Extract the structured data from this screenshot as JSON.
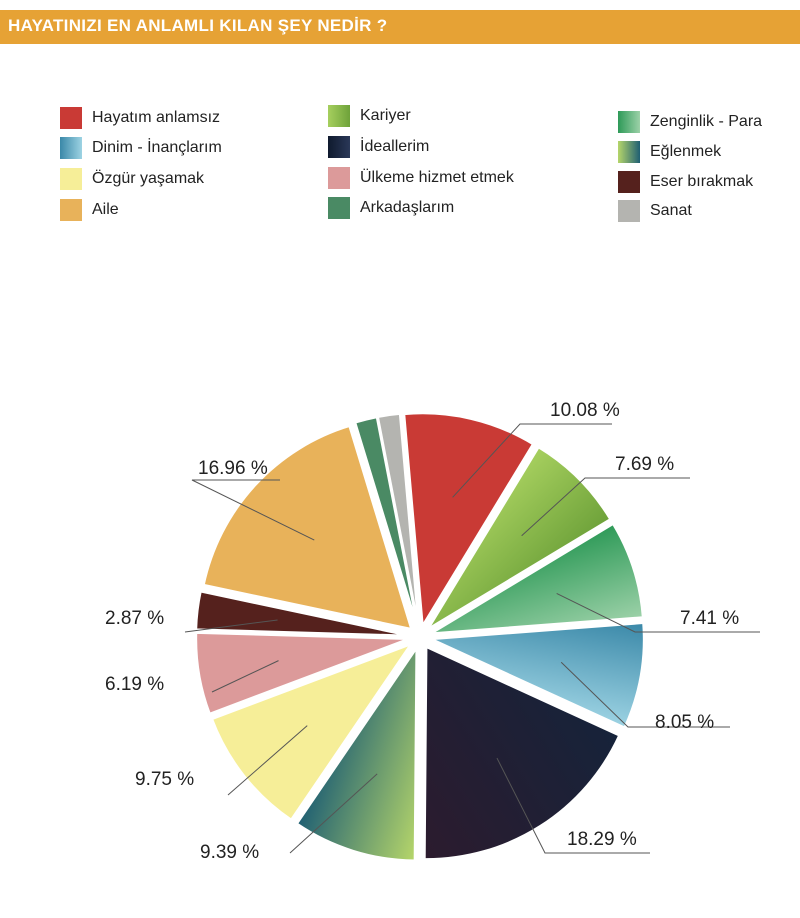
{
  "header": {
    "title": "HAYATINIZI EN ANLAMLI KILAN ŞEY NEDİR ?"
  },
  "legend": [
    {
      "label": "Hayatım anlamsız"
    },
    {
      "label": "Dinim - İnançlarım"
    },
    {
      "label": "Özgür yaşamak"
    },
    {
      "label": "Aile"
    },
    {
      "label": "Kariyer"
    },
    {
      "label": "İdeallerim"
    },
    {
      "label": "Ülkeme hizmet etmek"
    },
    {
      "label": "Arkadaşlarım"
    },
    {
      "label": "Zenginlik - Para"
    },
    {
      "label": "Eğlenmek"
    },
    {
      "label": "Eser bırakmak"
    },
    {
      "label": "Sanat"
    }
  ],
  "chart_data": {
    "type": "pie",
    "title": "HAYATINIZI EN ANLAMLI KILAN ŞEY NEDİR ?",
    "legend_position": "top",
    "slices": [
      {
        "name": "Hayatım anlamsız",
        "value": 10.08,
        "label": "10.08 %",
        "color": "#c93a35",
        "color2": "#c93a35"
      },
      {
        "name": "Kariyer",
        "value": 7.69,
        "label": "7.69 %",
        "color": "#a6cf5e",
        "color2": "#6ea23a"
      },
      {
        "name": "Zenginlik - Para",
        "value": 7.41,
        "label": "7.41 %",
        "color": "#2e9a58",
        "color2": "#9cd1a8"
      },
      {
        "name": "Dinim - İnançlarım",
        "value": 8.05,
        "label": "8.05 %",
        "color": "#3a88a8",
        "color2": "#9dd3e3"
      },
      {
        "name": "İdeallerim",
        "value": 18.29,
        "label": "18.29 %",
        "color": "#16233a",
        "color2": "#2c1b2e"
      },
      {
        "name": "Eğlenmek",
        "value": 9.39,
        "label": "9.39 %",
        "color": "#b6d66a",
        "color2": "#1f5f73"
      },
      {
        "name": "Özgür yaşamak",
        "value": 9.75,
        "label": "9.75 %",
        "color": "#f6ee98",
        "color2": "#f6ee98"
      },
      {
        "name": "Ülkeme hizmet etmek",
        "value": 6.19,
        "label": "6.19 %",
        "color": "#dc9a9a",
        "color2": "#dc9a9a"
      },
      {
        "name": "Eser bırakmak",
        "value": 2.87,
        "label": "2.87 %",
        "color": "#55211d",
        "color2": "#55211d"
      },
      {
        "name": "Aile",
        "value": 16.96,
        "label": "16.96 %",
        "color": "#e8b25a",
        "color2": "#e8b25a"
      },
      {
        "name": "Arkadaşlarım",
        "value": 1.66,
        "label": "",
        "color": "#4a8a64",
        "color2": "#4a8a64"
      },
      {
        "name": "Sanat",
        "value": 1.66,
        "label": "",
        "color": "#b4b4b0",
        "color2": "#b4b4b0"
      }
    ]
  }
}
